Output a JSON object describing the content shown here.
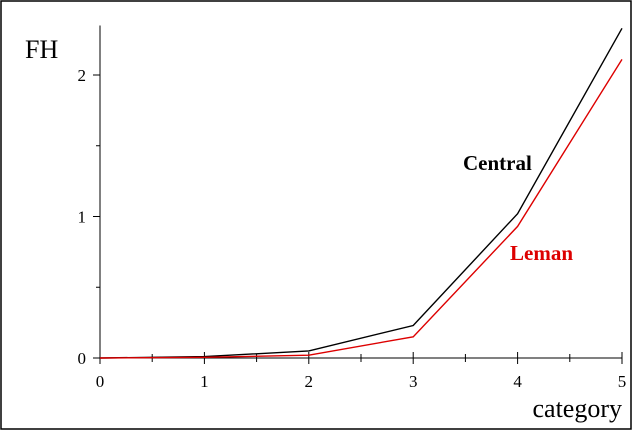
{
  "chart_data": {
    "type": "line",
    "title": "",
    "xlabel": "category",
    "ylabel": "FH",
    "xlim": [
      0,
      5
    ],
    "ylim": [
      0,
      2.35
    ],
    "x_ticks": [
      0,
      1,
      2,
      3,
      4,
      5
    ],
    "x_tick_labels": [
      "0",
      "1",
      "2",
      "3",
      "4",
      "5"
    ],
    "y_ticks": [
      0,
      1,
      2
    ],
    "y_tick_labels": [
      "0",
      "1",
      "2"
    ],
    "grid": false,
    "legend": "inline labels",
    "x": [
      0,
      1,
      2,
      3,
      4,
      5
    ],
    "series": [
      {
        "name": "Central",
        "color": "#000000",
        "values": [
          0,
          0.01,
          0.05,
          0.23,
          1.02,
          2.33
        ]
      },
      {
        "name": "Leman",
        "color": "#dd0000",
        "values": [
          0,
          0.005,
          0.02,
          0.15,
          0.93,
          2.11
        ]
      }
    ]
  }
}
